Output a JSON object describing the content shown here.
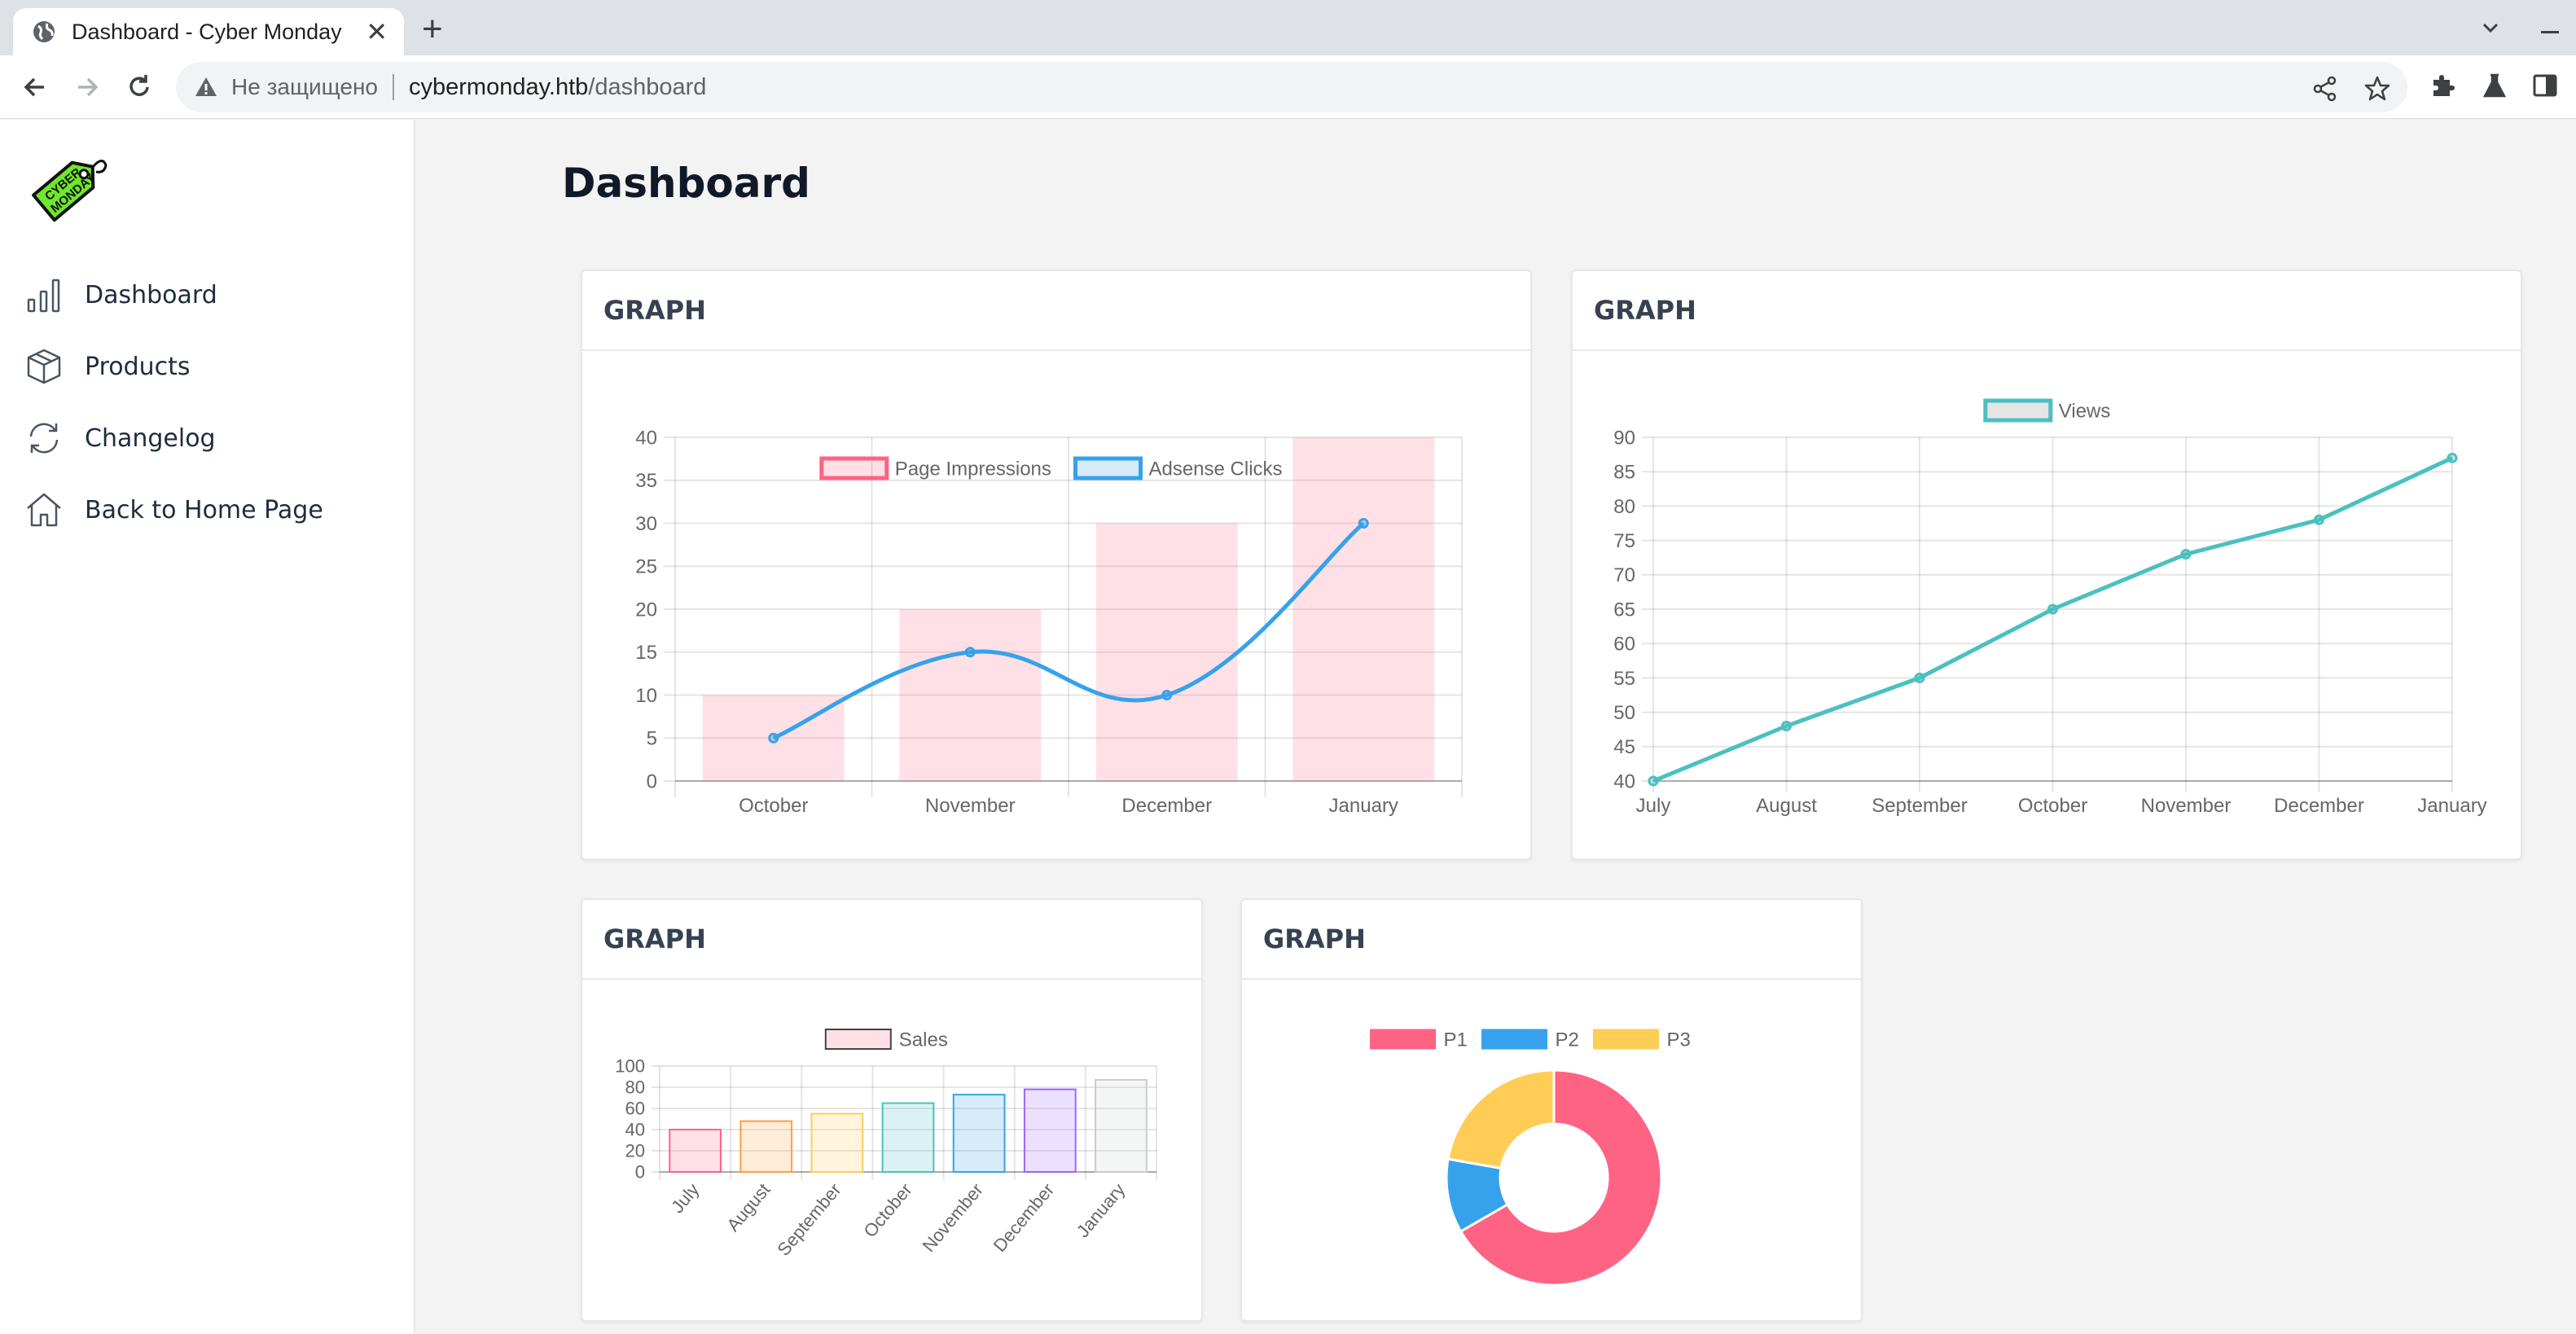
{
  "browser": {
    "tab_title": "Dashboard - Cyber Monday",
    "insecure_label": "Не защищено",
    "url_host": "cybermonday.htb",
    "url_path": "/dashboard"
  },
  "sidebar": {
    "items": [
      {
        "label": "Dashboard",
        "icon": "bar-chart-icon"
      },
      {
        "label": "Products",
        "icon": "box-icon"
      },
      {
        "label": "Changelog",
        "icon": "refresh-icon"
      },
      {
        "label": "Back to Home Page",
        "icon": "home-icon"
      }
    ]
  },
  "main": {
    "title": "Dashboard",
    "cards": [
      {
        "title": "GRAPH"
      },
      {
        "title": "GRAPH"
      },
      {
        "title": "GRAPH"
      },
      {
        "title": "GRAPH"
      }
    ]
  },
  "chart_data": [
    {
      "type": "bar",
      "categories": [
        "October",
        "November",
        "December",
        "January"
      ],
      "series": [
        {
          "name": "Page Impressions",
          "type": "bar",
          "values": [
            10,
            20,
            30,
            40
          ],
          "color": "#ff6384"
        },
        {
          "name": "Adsense Clicks",
          "type": "line",
          "values": [
            5,
            15,
            10,
            30
          ],
          "color": "#36a2eb"
        }
      ],
      "ylim": [
        0,
        40
      ],
      "yticks": [
        0,
        5,
        10,
        15,
        20,
        25,
        30,
        35,
        40
      ],
      "legend": "top",
      "grid": true
    },
    {
      "type": "line",
      "categories": [
        "July",
        "August",
        "September",
        "October",
        "November",
        "December",
        "January"
      ],
      "series": [
        {
          "name": "Views",
          "values": [
            40,
            48,
            55,
            65,
            73,
            78,
            87
          ],
          "color": "#4bc0c0"
        }
      ],
      "ylim": [
        40,
        90
      ],
      "yticks": [
        40,
        45,
        50,
        55,
        60,
        65,
        70,
        75,
        80,
        85,
        90
      ],
      "legend": "top",
      "grid": true
    },
    {
      "type": "bar",
      "categories": [
        "July",
        "August",
        "September",
        "October",
        "November",
        "December",
        "January"
      ],
      "series": [
        {
          "name": "Sales",
          "values": [
            40,
            48,
            55,
            65,
            73,
            78,
            87
          ]
        }
      ],
      "colors": [
        "#ff6384",
        "#ff9f40",
        "#ffcd56",
        "#4bc0c0",
        "#36a2eb",
        "#9966ff",
        "#c9cbcf"
      ],
      "ylim": [
        0,
        100
      ],
      "yticks": [
        0,
        20,
        40,
        60,
        80,
        100
      ],
      "legend": "top",
      "grid": true
    },
    {
      "type": "pie",
      "variant": "doughnut",
      "labels": [
        "P1",
        "P2",
        "P3"
      ],
      "values": [
        300,
        50,
        100
      ],
      "colors": [
        "#ff6384",
        "#36a2eb",
        "#ffcd56"
      ],
      "legend": "top"
    }
  ]
}
